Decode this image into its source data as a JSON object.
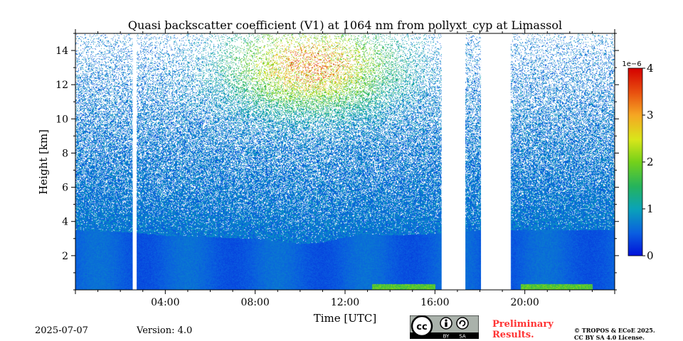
{
  "chart_data": {
    "type": "heatmap",
    "title": "Quasi backscatter coefficient (V1) at 1064 nm from pollyxt_cyp at Limassol",
    "xlabel": "Time [UTC]",
    "ylabel": "Height [km]",
    "xlim_hours": [
      0,
      24
    ],
    "ylim_km": [
      0,
      15
    ],
    "x_ticks": [
      {
        "hour": 4,
        "label": "04:00"
      },
      {
        "hour": 8,
        "label": "08:00"
      },
      {
        "hour": 12,
        "label": "12:00"
      },
      {
        "hour": 16,
        "label": "16:00"
      },
      {
        "hour": 20,
        "label": "20:00"
      }
    ],
    "y_ticks": [
      2,
      4,
      6,
      8,
      10,
      12,
      14
    ],
    "data_gaps_hours": [
      [
        2.55,
        2.72
      ],
      [
        16.3,
        17.35
      ],
      [
        18.05,
        19.35
      ]
    ],
    "boundary_layer_top_km": {
      "hours": [
        0,
        2,
        4,
        6,
        8,
        10,
        11,
        12,
        13,
        14,
        16,
        18,
        20,
        24
      ],
      "heights": [
        3.5,
        3.4,
        3.2,
        3.1,
        3.0,
        2.7,
        2.8,
        3.1,
        3.3,
        3.2,
        3.3,
        3.5,
        3.5,
        3.5
      ]
    },
    "aerosol_layer": {
      "center_hour": 10.5,
      "center_height_km": 13.2,
      "peak_value": 3.5e-06
    },
    "colorbar": {
      "exponent_label": "1e−6",
      "min": 0,
      "max": 4,
      "ticks": [
        0,
        1,
        2,
        3,
        4
      ],
      "colormap": [
        "#0011d9",
        "#0a5ee0",
        "#0aa3b8",
        "#25b35c",
        "#74d11a",
        "#d9e61a",
        "#f5a623",
        "#e8500f",
        "#d40000"
      ]
    },
    "grid": false,
    "legend": "colorbar-right"
  },
  "footer": {
    "date": "2025-07-07",
    "version": "Version: 4.0",
    "preliminary_line1": "Preliminary",
    "preliminary_line2": "Results.",
    "copyright_line1": "© TROPOS & ECoE 2025.",
    "copyright_line2": "CC BY SA 4.0 License.",
    "badge": {
      "cc": "cc",
      "by": "BY",
      "sa": "SA"
    }
  }
}
